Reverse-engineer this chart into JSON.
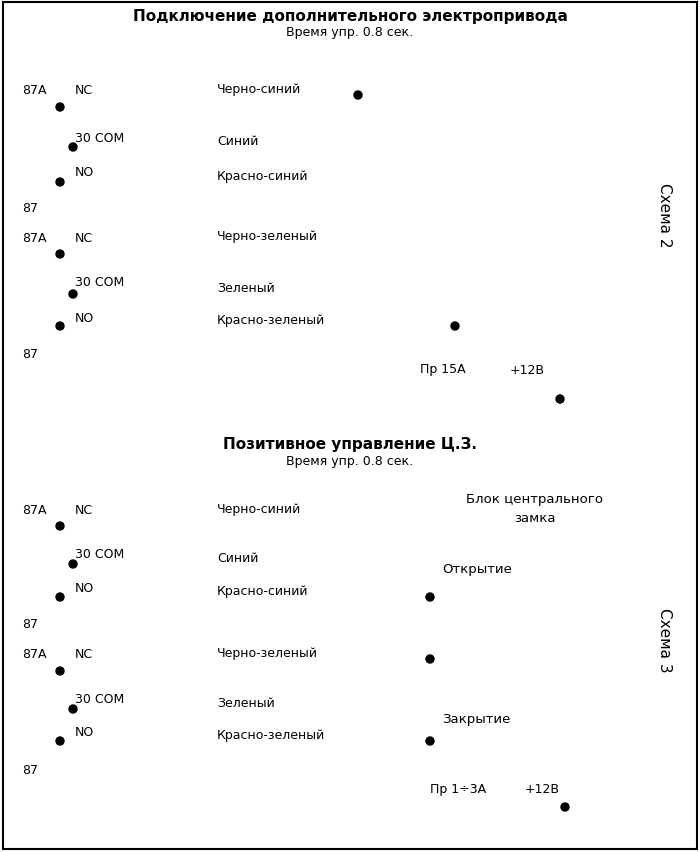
{
  "title1": "Подключение дополнительного электропривода",
  "subtitle1": "Время упр. 0.8 сек.",
  "title2": "Позитивное управление Ц.З.",
  "subtitle2": "Время упр. 0.8 сек.",
  "schema_label1": "Схема 2",
  "schema_label2": "Схема 3",
  "bg_color": "#ffffff",
  "line_color": "#000000",
  "text_color": "#000000"
}
